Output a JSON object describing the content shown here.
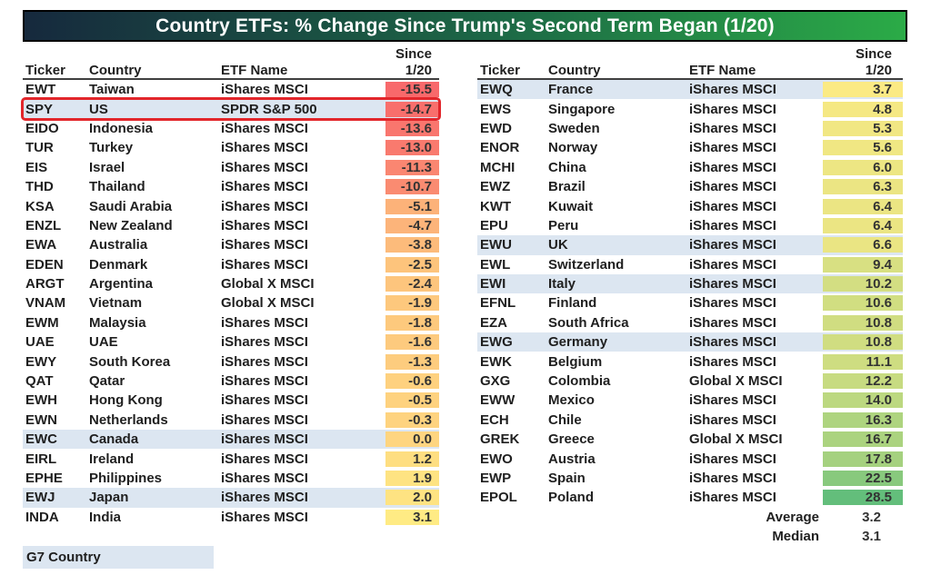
{
  "chart_data": {
    "type": "table",
    "title": "Country ETFs: % Change Since Trump's Second Term Began (1/20)",
    "header": {
      "ticker": "Ticker",
      "country": "Country",
      "etf": "ETF Name",
      "since_line1": "Since",
      "since_line2": "1/20"
    },
    "left_rows": [
      {
        "ticker": "EWT",
        "country": "Taiwan",
        "etf": "iShares MSCI",
        "value": "-15.5",
        "bg": "#F8696B"
      },
      {
        "ticker": "SPY",
        "country": "US",
        "etf": "SPDR S&P 500",
        "value": "-14.7",
        "bg": "#F86F6C",
        "g7": true,
        "callout": true
      },
      {
        "ticker": "EIDO",
        "country": "Indonesia",
        "etf": "iShares MSCI",
        "value": "-13.6",
        "bg": "#F9766E"
      },
      {
        "ticker": "TUR",
        "country": "Turkey",
        "etf": "iShares MSCI",
        "value": "-13.0",
        "bg": "#F97A6E"
      },
      {
        "ticker": "EIS",
        "country": "Israel",
        "etf": "iShares MSCI",
        "value": "-11.3",
        "bg": "#FA8671"
      },
      {
        "ticker": "THD",
        "country": "Thailand",
        "etf": "iShares MSCI",
        "value": "-10.7",
        "bg": "#FA8B71"
      },
      {
        "ticker": "KSA",
        "country": "Saudi Arabia",
        "etf": "iShares MSCI",
        "value": "-5.1",
        "bg": "#FCB279"
      },
      {
        "ticker": "ENZL",
        "country": "New Zealand",
        "etf": "iShares MSCI",
        "value": "-4.7",
        "bg": "#FCB47A"
      },
      {
        "ticker": "EWA",
        "country": "Australia",
        "etf": "iShares MSCI",
        "value": "-3.8",
        "bg": "#FCBB7B"
      },
      {
        "ticker": "EDEN",
        "country": "Denmark",
        "etf": "iShares MSCI",
        "value": "-2.5",
        "bg": "#FDC47C"
      },
      {
        "ticker": "ARGT",
        "country": "Argentina",
        "etf": "Global X MSCI",
        "value": "-2.4",
        "bg": "#FDC57D"
      },
      {
        "ticker": "VNAM",
        "country": "Vietnam",
        "etf": "Global X MSCI",
        "value": "-1.9",
        "bg": "#FDC87D"
      },
      {
        "ticker": "EWM",
        "country": "Malaysia",
        "etf": "iShares MSCI",
        "value": "-1.8",
        "bg": "#FDC97D"
      },
      {
        "ticker": "UAE",
        "country": "UAE",
        "etf": "iShares MSCI",
        "value": "-1.6",
        "bg": "#FDCA7E"
      },
      {
        "ticker": "EWY",
        "country": "South Korea",
        "etf": "iShares MSCI",
        "value": "-1.3",
        "bg": "#FDCC7E"
      },
      {
        "ticker": "QAT",
        "country": "Qatar",
        "etf": "iShares MSCI",
        "value": "-0.6",
        "bg": "#FED17F"
      },
      {
        "ticker": "EWH",
        "country": "Hong Kong",
        "etf": "iShares MSCI",
        "value": "-0.5",
        "bg": "#FED27F"
      },
      {
        "ticker": "EWN",
        "country": "Netherlands",
        "etf": "iShares MSCI",
        "value": "-0.3",
        "bg": "#FED37F"
      },
      {
        "ticker": "EWC",
        "country": "Canada",
        "etf": "iShares MSCI",
        "value": "0.0",
        "bg": "#FED580",
        "g7": true
      },
      {
        "ticker": "EIRL",
        "country": "Ireland",
        "etf": "iShares MSCI",
        "value": "1.2",
        "bg": "#FEDE81"
      },
      {
        "ticker": "EPHE",
        "country": "Philippines",
        "etf": "iShares MSCI",
        "value": "1.9",
        "bg": "#FEE382"
      },
      {
        "ticker": "EWJ",
        "country": "Japan",
        "etf": "iShares MSCI",
        "value": "2.0",
        "bg": "#FEE382",
        "g7": true
      },
      {
        "ticker": "INDA",
        "country": "India",
        "etf": "iShares MSCI",
        "value": "3.1",
        "bg": "#FFEB84"
      }
    ],
    "right_rows": [
      {
        "ticker": "EWQ",
        "country": "France",
        "etf": "iShares MSCI",
        "value": "3.7",
        "bg": "#FBEA84",
        "g7": true
      },
      {
        "ticker": "EWS",
        "country": "Singapore",
        "etf": "iShares MSCI",
        "value": "4.8",
        "bg": "#F5E883"
      },
      {
        "ticker": "EWD",
        "country": "Sweden",
        "etf": "iShares MSCI",
        "value": "5.3",
        "bg": "#F1E783"
      },
      {
        "ticker": "ENOR",
        "country": "Norway",
        "etf": "iShares MSCI",
        "value": "5.6",
        "bg": "#F0E783"
      },
      {
        "ticker": "MCHI",
        "country": "China",
        "etf": "iShares MSCI",
        "value": "6.0",
        "bg": "#EDE683"
      },
      {
        "ticker": "EWZ",
        "country": "Brazil",
        "etf": "iShares MSCI",
        "value": "6.3",
        "bg": "#EBE583"
      },
      {
        "ticker": "KWT",
        "country": "Kuwait",
        "etf": "iShares MSCI",
        "value": "6.4",
        "bg": "#EBE583"
      },
      {
        "ticker": "EPU",
        "country": "Peru",
        "etf": "iShares MSCI",
        "value": "6.4",
        "bg": "#EBE583"
      },
      {
        "ticker": "EWU",
        "country": "UK",
        "etf": "iShares MSCI",
        "value": "6.6",
        "bg": "#EAE583",
        "g7": true
      },
      {
        "ticker": "EWL",
        "country": "Switzerland",
        "etf": "iShares MSCI",
        "value": "9.4",
        "bg": "#D8E082"
      },
      {
        "ticker": "EWI",
        "country": "Italy",
        "etf": "iShares MSCI",
        "value": "10.2",
        "bg": "#D3DE82",
        "g7": true
      },
      {
        "ticker": "EFNL",
        "country": "Finland",
        "etf": "iShares MSCI",
        "value": "10.6",
        "bg": "#D1DE81"
      },
      {
        "ticker": "EZA",
        "country": "South Africa",
        "etf": "iShares MSCI",
        "value": "10.8",
        "bg": "#D0DD81"
      },
      {
        "ticker": "EWG",
        "country": "Germany",
        "etf": "iShares MSCI",
        "value": "10.8",
        "bg": "#D0DD81",
        "g7": true
      },
      {
        "ticker": "EWK",
        "country": "Belgium",
        "etf": "iShares MSCI",
        "value": "11.1",
        "bg": "#CEDD81"
      },
      {
        "ticker": "GXG",
        "country": "Colombia",
        "etf": "Global X MSCI",
        "value": "12.2",
        "bg": "#C7DB81"
      },
      {
        "ticker": "EWW",
        "country": "Mexico",
        "etf": "iShares MSCI",
        "value": "14.0",
        "bg": "#BCD880"
      },
      {
        "ticker": "ECH",
        "country": "Chile",
        "etf": "iShares MSCI",
        "value": "16.3",
        "bg": "#AED47F"
      },
      {
        "ticker": "GREK",
        "country": "Greece",
        "etf": "Global X MSCI",
        "value": "16.7",
        "bg": "#ABD37F"
      },
      {
        "ticker": "EWO",
        "country": "Austria",
        "etf": "iShares MSCI",
        "value": "17.8",
        "bg": "#A5D17F"
      },
      {
        "ticker": "EWP",
        "country": "Spain",
        "etf": "iShares MSCI",
        "value": "22.5",
        "bg": "#88C97D"
      },
      {
        "ticker": "EPOL",
        "country": "Poland",
        "etf": "iShares MSCI",
        "value": "28.5",
        "bg": "#63BE7B"
      }
    ],
    "summary": {
      "average_label": "Average",
      "average_value": "3.2",
      "median_label": "Median",
      "median_value": "3.1"
    },
    "legend": {
      "g7_label": "G7 Country"
    },
    "color_scale": {
      "min_color": "#F8696B",
      "mid_color": "#FFEB84",
      "max_color": "#63BE7B",
      "min_value": -15.5,
      "mid_value": 3.1,
      "max_value": 28.5
    },
    "colors": {
      "title_gradient_left": "#16293D",
      "title_gradient_right": "#2BAB47",
      "g7_highlight": "#DCE6F1",
      "callout_border": "#E2262B",
      "header_underline": "#3F3F3F",
      "text": "#1F1F1F"
    }
  }
}
